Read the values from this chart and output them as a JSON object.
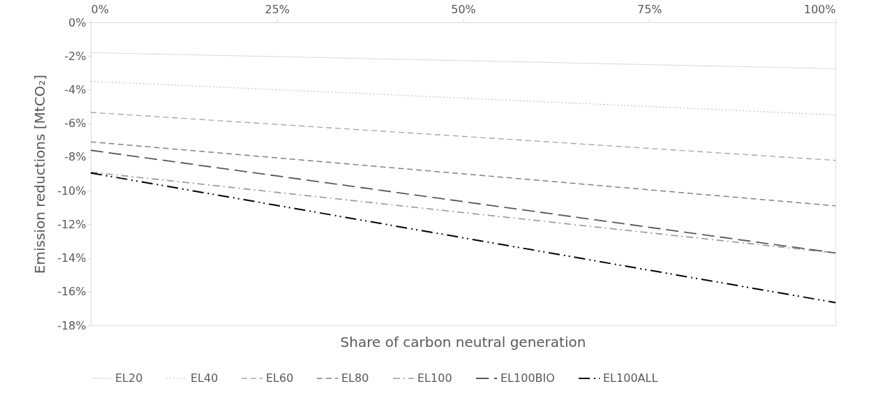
{
  "chart_data": {
    "type": "line",
    "xlabel": "Share of carbon neutral generation",
    "ylabel": "Emission reductions [MtCO₂]",
    "x": [
      0,
      100
    ],
    "xlim": [
      0,
      100
    ],
    "xticks": [
      {
        "value": 0,
        "label": "0%"
      },
      {
        "value": 25,
        "label": "25%"
      },
      {
        "value": 50,
        "label": "50%"
      },
      {
        "value": 75,
        "label": "75%"
      },
      {
        "value": 100,
        "label": "100%"
      }
    ],
    "ylim": [
      -18,
      0
    ],
    "yticks": [
      {
        "value": 0,
        "label": "0%"
      },
      {
        "value": -2,
        "label": "-2%"
      },
      {
        "value": -4,
        "label": "-4%"
      },
      {
        "value": -6,
        "label": "-6%"
      },
      {
        "value": -8,
        "label": "-8%"
      },
      {
        "value": -10,
        "label": "-10%"
      },
      {
        "value": -12,
        "label": "-12%"
      },
      {
        "value": -14,
        "label": "-14%"
      },
      {
        "value": -16,
        "label": "-16%"
      },
      {
        "value": -18,
        "label": "-18%"
      }
    ],
    "grid": false,
    "legend": "bottom",
    "series": [
      {
        "name": "EL20",
        "color": "#d9d9d9",
        "line_style": "solid",
        "values": [
          -1.8,
          -2.75
        ]
      },
      {
        "name": "EL40",
        "color": "#bfbfbf",
        "line_style": "dotted",
        "values": [
          -3.5,
          -5.5
        ]
      },
      {
        "name": "EL60",
        "color": "#a6a6a6",
        "line_style": "dashed",
        "values": [
          -5.35,
          -8.2
        ]
      },
      {
        "name": "EL80",
        "color": "#808080",
        "line_style": "dashed",
        "values": [
          -7.1,
          -10.9
        ]
      },
      {
        "name": "EL100",
        "color": "#999999",
        "line_style": "dashdot",
        "values": [
          -8.9,
          -13.7
        ]
      },
      {
        "name": "EL100BIO",
        "color": "#595959",
        "line_style": "longdash",
        "values": [
          -7.6,
          -13.7
        ]
      },
      {
        "name": "EL100ALL",
        "color": "#000000",
        "line_style": "dashdotdot",
        "values": [
          -8.95,
          -16.65
        ]
      }
    ]
  }
}
